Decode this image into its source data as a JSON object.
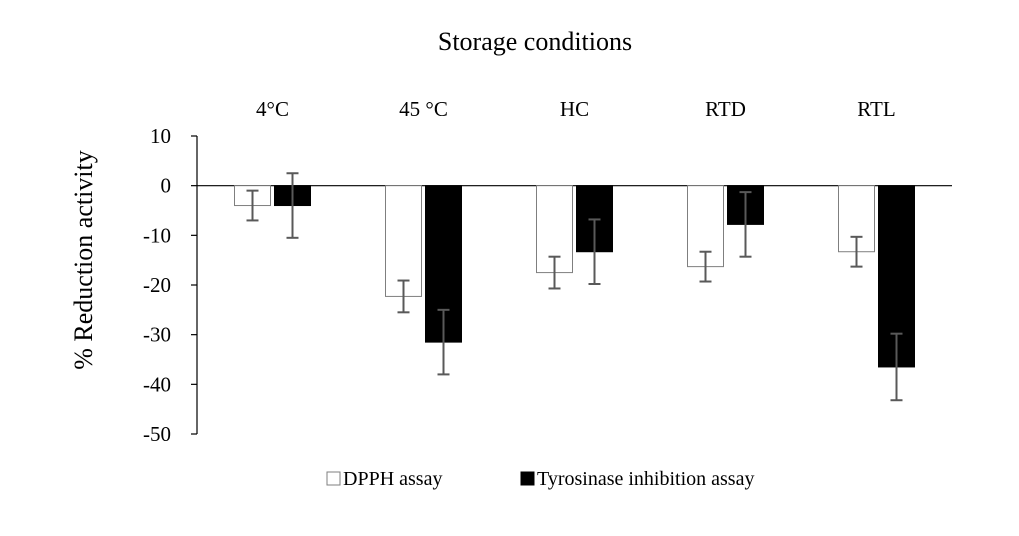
{
  "chart_data": {
    "type": "bar",
    "title": "Storage conditions",
    "ylabel": "% Reduction activity",
    "xlabel": "",
    "categories": [
      "4°C",
      "45 °C",
      "HC",
      "RTD",
      "RTL"
    ],
    "ylim": [
      -50,
      10
    ],
    "yticks": [
      10,
      0,
      -10,
      -20,
      -30,
      -40,
      -50
    ],
    "grid": false,
    "legend_position": "bottom",
    "series": [
      {
        "name": "DPPH assay",
        "values": [
          -4,
          -22.3,
          -17.5,
          -16.3,
          -13.3
        ],
        "errors": [
          3,
          3.2,
          3.2,
          3,
          3
        ],
        "color": "#ffffff",
        "stroke": "#7f7f7f"
      },
      {
        "name": "Tyrosinase inhibition assay",
        "values": [
          -4,
          -31.5,
          -13.3,
          -7.8,
          -36.5
        ],
        "errors": [
          6.5,
          6.5,
          6.5,
          6.5,
          6.7
        ],
        "color": "#000000",
        "stroke": "#000000"
      }
    ]
  }
}
